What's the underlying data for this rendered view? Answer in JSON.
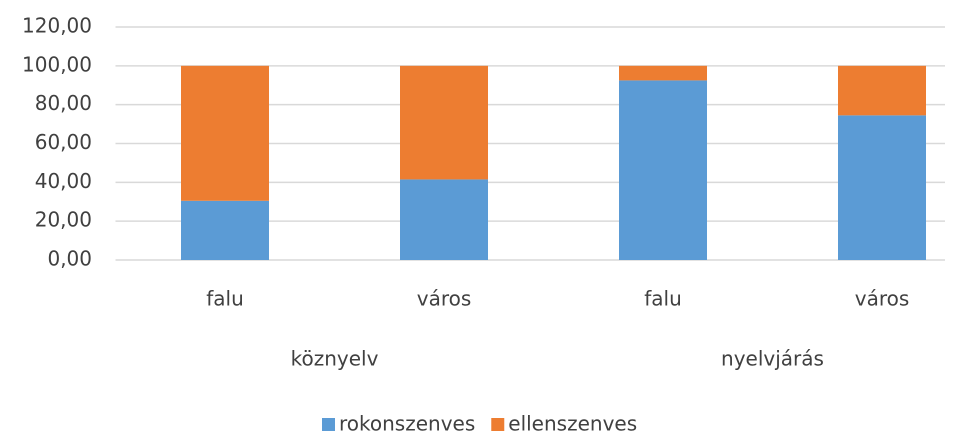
{
  "chart_data": {
    "type": "stacked_bar",
    "categories": [
      "falu",
      "város",
      "falu",
      "város"
    ],
    "groups": [
      "köznyelv",
      "nyelvjárás"
    ],
    "series": [
      {
        "name": "rokonszenves",
        "color": "#5b9bd5",
        "values": [
          30.5,
          41.5,
          92.5,
          74.5
        ]
      },
      {
        "name": "ellenszenves",
        "color": "#ed7d31",
        "values": [
          69.5,
          58.5,
          7.5,
          25.5
        ]
      }
    ],
    "ylim": [
      0,
      120
    ],
    "yticks": [
      {
        "value": 0,
        "label": "0,00"
      },
      {
        "value": 20,
        "label": "20,00"
      },
      {
        "value": 40,
        "label": "40,00"
      },
      {
        "value": 60,
        "label": "60,00"
      },
      {
        "value": 80,
        "label": "80,00"
      },
      {
        "value": 100,
        "label": "100,00"
      },
      {
        "value": 120,
        "label": "120,00"
      }
    ],
    "grid": true,
    "legend": "bottom"
  }
}
